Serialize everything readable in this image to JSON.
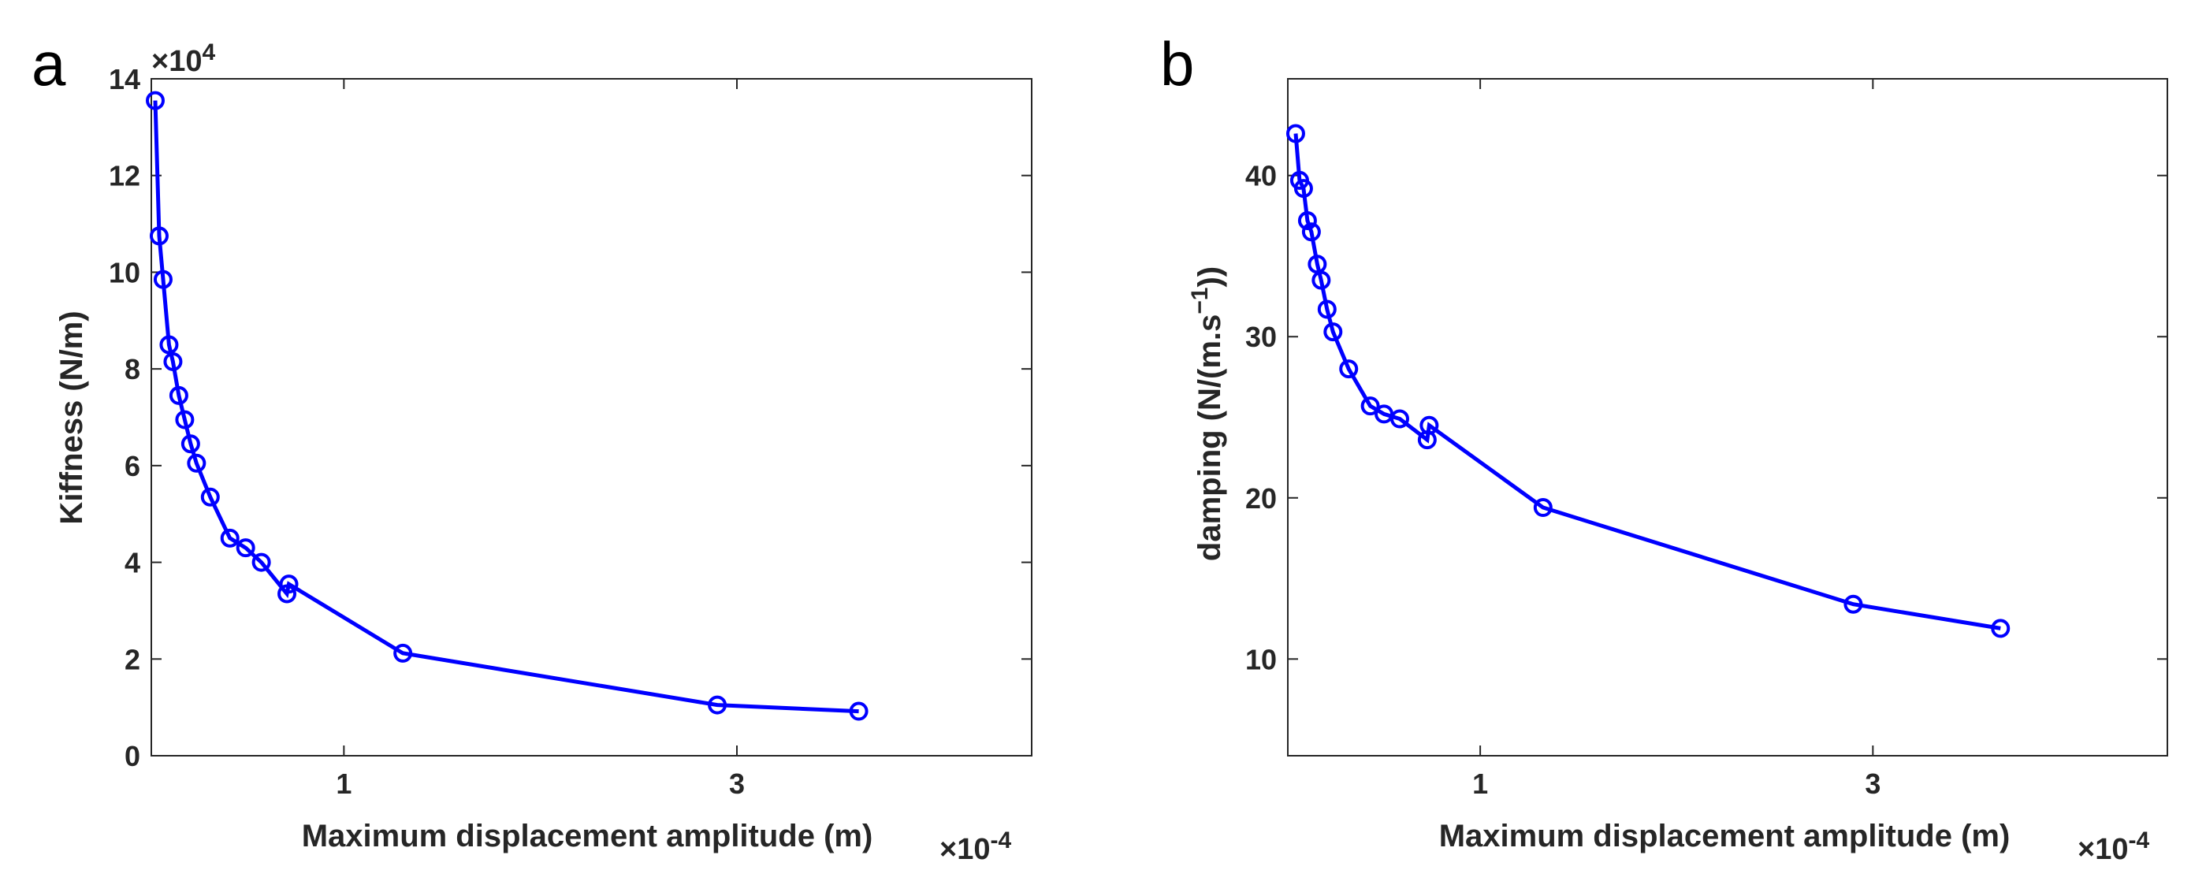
{
  "colors": {
    "series": "#0000ff",
    "axis": "#262626"
  },
  "chart_data": [
    {
      "panel": "a",
      "type": "line",
      "marker": "circle",
      "xlabel": "Maximum displacement amplitude (m)",
      "ylabel": "Kiffness (N/m)",
      "x_multiplier": "×10",
      "x_multiplier_exp": "-4",
      "y_multiplier": "×10",
      "y_multiplier_exp": "4",
      "xlim": [
        0.02,
        4.5
      ],
      "ylim": [
        0,
        14
      ],
      "xticks": [
        1,
        3
      ],
      "yticks": [
        0,
        2,
        4,
        6,
        8,
        10,
        12,
        14
      ],
      "grid": false,
      "x": [
        0.04,
        0.06,
        0.08,
        0.11,
        0.13,
        0.16,
        0.19,
        0.22,
        0.25,
        0.32,
        0.42,
        0.5,
        0.58,
        0.71,
        0.72,
        1.3,
        2.9,
        3.62
      ],
      "y": [
        13.55,
        10.75,
        9.85,
        8.5,
        8.15,
        7.45,
        6.95,
        6.45,
        6.05,
        5.35,
        4.5,
        4.3,
        4.0,
        3.35,
        3.55,
        2.12,
        1.05,
        0.92
      ]
    },
    {
      "panel": "b",
      "type": "line",
      "marker": "circle",
      "xlabel": "Maximum displacement amplitude (m)",
      "ylabel": "damping (N/(m.s",
      "ylabel_sup": "−1",
      "ylabel_end": "))",
      "x_multiplier": "×10",
      "x_multiplier_exp": "-4",
      "xlim": [
        0.02,
        4.5
      ],
      "ylim": [
        4,
        46
      ],
      "xticks": [
        1,
        3
      ],
      "yticks": [
        10,
        20,
        30,
        40
      ],
      "grid": false,
      "x": [
        0.06,
        0.08,
        0.1,
        0.12,
        0.14,
        0.17,
        0.19,
        0.22,
        0.25,
        0.33,
        0.44,
        0.51,
        0.59,
        0.73,
        0.74,
        1.32,
        2.9,
        3.65
      ],
      "y": [
        42.6,
        39.7,
        39.2,
        37.2,
        36.5,
        34.5,
        33.5,
        31.7,
        30.3,
        28.0,
        25.7,
        25.2,
        24.9,
        23.6,
        24.5,
        19.4,
        13.4,
        11.9
      ]
    }
  ]
}
